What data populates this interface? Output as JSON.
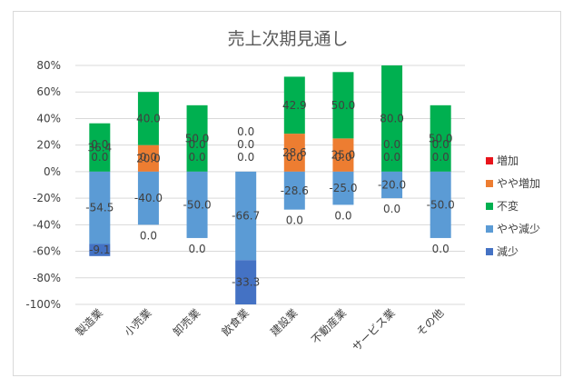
{
  "chart_data": {
    "type": "bar",
    "stacked": true,
    "title": "売上次期見通し",
    "categories": [
      "製造業",
      "小売業",
      "卸売業",
      "飲食業",
      "建設業",
      "不動産業",
      "サービス業",
      "その他"
    ],
    "ylim": [
      -100,
      80
    ],
    "yticks": [
      80,
      60,
      40,
      20,
      0,
      -20,
      -40,
      -60,
      -80,
      -100
    ],
    "ytick_labels": [
      "80%",
      "60%",
      "40%",
      "20%",
      "0%",
      "-20%",
      "-40%",
      "-60%",
      "-80%",
      "-100%"
    ],
    "grid": true,
    "legend_position": "right",
    "series": [
      {
        "name": "増加",
        "color": "#e8141b",
        "values": [
          0.0,
          0.0,
          0.0,
          0.0,
          0.0,
          0.0,
          0.0,
          0.0
        ]
      },
      {
        "name": "やや増加",
        "color": "#ed7d31",
        "values": [
          0.0,
          20.0,
          0.0,
          0.0,
          28.6,
          25.0,
          0.0,
          0.0
        ]
      },
      {
        "name": "不変",
        "color": "#00b050",
        "values": [
          36.4,
          40.0,
          50.0,
          0.0,
          42.9,
          50.0,
          80.0,
          50.0
        ]
      },
      {
        "name": "やや減少",
        "color": "#5b9bd5",
        "values": [
          -54.5,
          -40.0,
          -50.0,
          -66.7,
          -28.6,
          -25.0,
          -20.0,
          -50.0
        ]
      },
      {
        "name": "減少",
        "color": "#4472c4",
        "values": [
          -9.1,
          0.0,
          0.0,
          -33.3,
          0.0,
          0.0,
          0.0,
          0.0
        ]
      }
    ]
  }
}
